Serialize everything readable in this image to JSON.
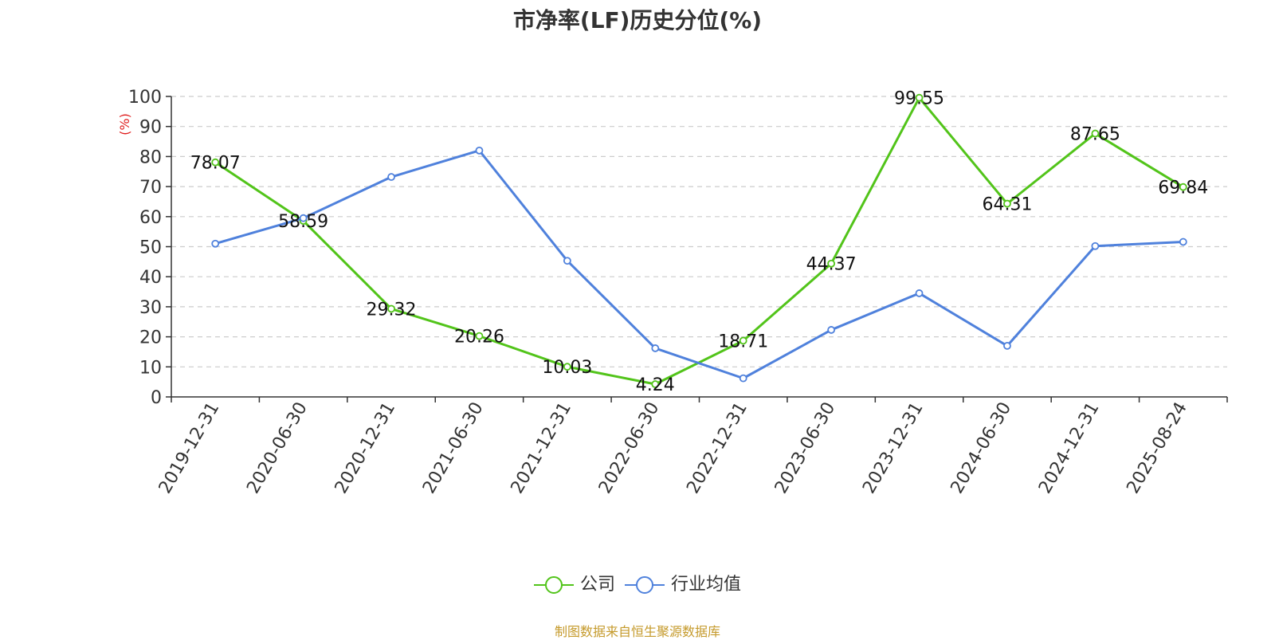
{
  "title": "市净率(LF)历史分位(%)",
  "source": "制图数据来自恒生聚源数据库",
  "chart_data": {
    "type": "line",
    "title": "市净率(LF)历史分位(%)",
    "ylabel": "(%)",
    "ylim": [
      0,
      100
    ],
    "yticks": [
      0,
      10,
      20,
      30,
      40,
      50,
      60,
      70,
      80,
      90,
      100
    ],
    "grid": true,
    "legend_position": "bottom",
    "categories": [
      "2019-12-31",
      "2020-06-30",
      "2020-12-31",
      "2021-06-30",
      "2021-12-31",
      "2022-06-30",
      "2022-12-31",
      "2023-06-30",
      "2023-12-31",
      "2024-06-30",
      "2024-12-31",
      "2025-08-24"
    ],
    "series": [
      {
        "name": "公司",
        "color": "#52c41a",
        "show_labels": true,
        "values": [
          78.07,
          58.59,
          29.32,
          20.26,
          10.03,
          4.24,
          18.71,
          44.37,
          99.55,
          64.31,
          87.65,
          69.84
        ],
        "labels": [
          "78.07",
          "58.59",
          "29.32",
          "20.26",
          "10.03",
          "4.24",
          "18.71",
          "44.37",
          "99.55",
          "64.31",
          "87.65",
          "69.84"
        ]
      },
      {
        "name": "行业均值",
        "color": "#4f81dc",
        "show_labels": false,
        "values": [
          51.0,
          59.5,
          73.2,
          82.0,
          45.3,
          16.2,
          6.2,
          22.3,
          34.5,
          17.0,
          50.2,
          51.6
        ]
      }
    ]
  }
}
